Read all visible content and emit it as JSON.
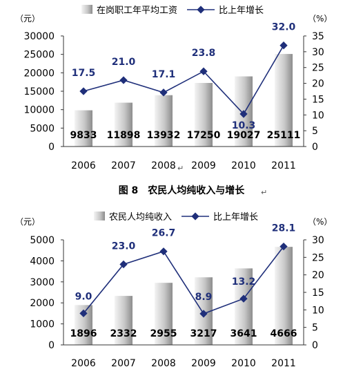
{
  "figure_caption": "图 8　农民人均纯收入与增长",
  "return_mark": "↵",
  "colors": {
    "bar_light": "#f4f4f4",
    "bar_dark": "#8c8c8c",
    "line": "#1f2f7a",
    "label_blue": "#1f2f7a",
    "axis": "#333333",
    "text": "#000000"
  },
  "chart_data": [
    {
      "type": "bar",
      "categories": [
        "2006",
        "2007",
        "2008",
        "2009",
        "2010",
        "2011"
      ],
      "series": [
        {
          "name": "在岗职工年平均工资",
          "type": "bar",
          "axis": "left",
          "values": [
            9833,
            11898,
            13932,
            17250,
            19027,
            25111
          ]
        },
        {
          "name": "比上年增长",
          "type": "line",
          "axis": "right",
          "values": [
            17.5,
            21.0,
            17.1,
            23.8,
            10.3,
            32.0
          ]
        }
      ],
      "bar_labels": [
        "9833",
        "11898",
        "13932",
        "17250",
        "19027",
        "25111"
      ],
      "line_labels": [
        "17.5",
        "21.0",
        "17.1",
        "23.8",
        "10.3",
        "32.0"
      ],
      "y_left_unit": "（元）",
      "y_right_unit": "（%）",
      "ylim_left": [
        0,
        30000
      ],
      "ylim_right": [
        0,
        35
      ],
      "y_left_ticks": [
        "0",
        "5000",
        "10000",
        "15000",
        "20000",
        "25000",
        "30000"
      ],
      "y_right_ticks": [
        "0",
        "5",
        "10",
        "15",
        "20",
        "25",
        "30",
        "35"
      ],
      "legend_position": "top",
      "grid": false
    },
    {
      "type": "bar",
      "categories": [
        "2006",
        "2007",
        "2008",
        "2009",
        "2010",
        "2011"
      ],
      "series": [
        {
          "name": "农民人均纯收入",
          "type": "bar",
          "axis": "left",
          "values": [
            1896,
            2332,
            2955,
            3217,
            3641,
            4666
          ]
        },
        {
          "name": "比上年增长",
          "type": "line",
          "axis": "right",
          "values": [
            9.0,
            23.0,
            26.7,
            8.9,
            13.2,
            28.1
          ]
        }
      ],
      "bar_labels": [
        "1896",
        "2332",
        "2955",
        "3217",
        "3641",
        "4666"
      ],
      "line_labels": [
        "9.0",
        "23.0",
        "26.7",
        "8.9",
        "13.2",
        "28.1"
      ],
      "y_left_unit": "（元）",
      "y_right_unit": "（%）",
      "ylim_left": [
        0,
        5000
      ],
      "ylim_right": [
        0,
        30
      ],
      "y_left_ticks": [
        "0",
        "1000",
        "2000",
        "3000",
        "4000",
        "5000"
      ],
      "y_right_ticks": [
        "0",
        "5",
        "10",
        "15",
        "20",
        "25",
        "30"
      ],
      "legend_position": "top",
      "grid": false
    }
  ]
}
